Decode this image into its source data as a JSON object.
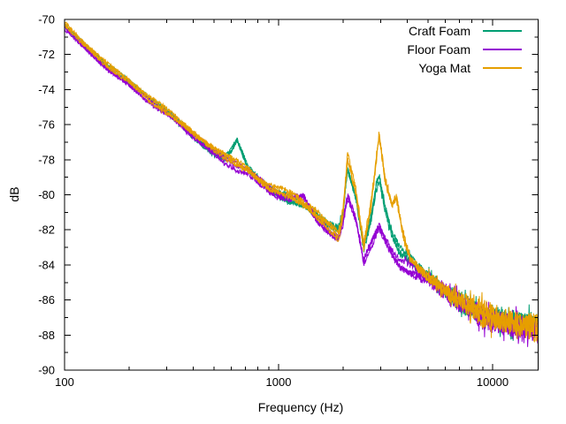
{
  "chart_data": {
    "type": "line",
    "title": "",
    "xlabel": "Frequency (Hz)",
    "ylabel": "dB",
    "x_scale": "log",
    "grid": false,
    "xlim": [
      100,
      16300
    ],
    "ylim": [
      -90,
      -70
    ],
    "x_major_ticks": [
      {
        "value": 100,
        "label": "100"
      },
      {
        "value": 1000,
        "label": "1000"
      },
      {
        "value": 10000,
        "label": "10000"
      }
    ],
    "y_major_ticks": [
      {
        "value": -90,
        "label": "-90"
      },
      {
        "value": -88,
        "label": "-88"
      },
      {
        "value": -86,
        "label": "-86"
      },
      {
        "value": -84,
        "label": "-84"
      },
      {
        "value": -82,
        "label": "-82"
      },
      {
        "value": -80,
        "label": "-80"
      },
      {
        "value": -78,
        "label": "-78"
      },
      {
        "value": -76,
        "label": "-76"
      },
      {
        "value": -74,
        "label": "-74"
      },
      {
        "value": -72,
        "label": "-72"
      },
      {
        "value": -70,
        "label": "-70"
      }
    ],
    "frame_color": "#000000",
    "text_color": "#000000",
    "legend": {
      "position": "top-right"
    },
    "traces_per_series": 3,
    "noise_band_db": {
      "low_freq": 0.15,
      "high_freq": 1.0
    },
    "series": [
      {
        "name": "Craft Foam",
        "color": "#009e73",
        "points": [
          [
            100,
            -70.35
          ],
          [
            126,
            -71.6
          ],
          [
            158,
            -72.7
          ],
          [
            200,
            -73.6
          ],
          [
            251,
            -74.6
          ],
          [
            316,
            -75.5
          ],
          [
            360,
            -76.1
          ],
          [
            400,
            -76.6
          ],
          [
            450,
            -77.1
          ],
          [
            500,
            -77.5
          ],
          [
            560,
            -77.9
          ],
          [
            600,
            -77.4
          ],
          [
            640,
            -76.8
          ],
          [
            680,
            -77.6
          ],
          [
            720,
            -78.4
          ],
          [
            800,
            -79.0
          ],
          [
            900,
            -79.6
          ],
          [
            1000,
            -79.9
          ],
          [
            1150,
            -80.3
          ],
          [
            1300,
            -80.6
          ],
          [
            1500,
            -81.2
          ],
          [
            1700,
            -81.8
          ],
          [
            1900,
            -82.1
          ],
          [
            2000,
            -81.2
          ],
          [
            2100,
            -78.7
          ],
          [
            2300,
            -80.3
          ],
          [
            2500,
            -83.1
          ],
          [
            2700,
            -81.4
          ],
          [
            2850,
            -79.6
          ],
          [
            2950,
            -79.0
          ],
          [
            3150,
            -80.8
          ],
          [
            3400,
            -82.3
          ],
          [
            3700,
            -83.2
          ],
          [
            4100,
            -83.6
          ],
          [
            4500,
            -84.1
          ],
          [
            5000,
            -84.6
          ],
          [
            5600,
            -85.1
          ],
          [
            6300,
            -85.6
          ],
          [
            7100,
            -86.0
          ],
          [
            8000,
            -86.4
          ],
          [
            9000,
            -86.8
          ],
          [
            10000,
            -87.0
          ],
          [
            11500,
            -87.2
          ],
          [
            13000,
            -87.4
          ],
          [
            15000,
            -87.5
          ],
          [
            16300,
            -87.6
          ]
        ]
      },
      {
        "name": "Floor Foam",
        "color": "#9400d3",
        "points": [
          [
            100,
            -70.45
          ],
          [
            126,
            -71.7
          ],
          [
            158,
            -72.8
          ],
          [
            200,
            -73.7
          ],
          [
            251,
            -74.7
          ],
          [
            316,
            -75.6
          ],
          [
            360,
            -76.2
          ],
          [
            400,
            -76.7
          ],
          [
            450,
            -77.2
          ],
          [
            500,
            -77.6
          ],
          [
            560,
            -78.0
          ],
          [
            640,
            -78.4
          ],
          [
            720,
            -78.7
          ],
          [
            800,
            -79.2
          ],
          [
            900,
            -79.7
          ],
          [
            1000,
            -80.0
          ],
          [
            1150,
            -80.2
          ],
          [
            1300,
            -80.0
          ],
          [
            1500,
            -81.3
          ],
          [
            1700,
            -82.0
          ],
          [
            1900,
            -82.5
          ],
          [
            2000,
            -81.6
          ],
          [
            2100,
            -80.1
          ],
          [
            2300,
            -81.4
          ],
          [
            2500,
            -83.8
          ],
          [
            2700,
            -82.9
          ],
          [
            2850,
            -82.2
          ],
          [
            2950,
            -81.9
          ],
          [
            3150,
            -82.6
          ],
          [
            3400,
            -83.4
          ],
          [
            3700,
            -84.0
          ],
          [
            4100,
            -84.3
          ],
          [
            4500,
            -84.6
          ],
          [
            5000,
            -84.9
          ],
          [
            5600,
            -85.3
          ],
          [
            6300,
            -85.8
          ],
          [
            7100,
            -86.2
          ],
          [
            8000,
            -86.6
          ],
          [
            9000,
            -86.9
          ],
          [
            10000,
            -87.1
          ],
          [
            11500,
            -87.3
          ],
          [
            13000,
            -87.5
          ],
          [
            15000,
            -87.6
          ],
          [
            16300,
            -87.7
          ]
        ]
      },
      {
        "name": "Yoga Mat",
        "color": "#e69f00",
        "points": [
          [
            100,
            -70.25
          ],
          [
            126,
            -71.5
          ],
          [
            158,
            -72.6
          ],
          [
            200,
            -73.5
          ],
          [
            251,
            -74.5
          ],
          [
            316,
            -75.4
          ],
          [
            360,
            -76.0
          ],
          [
            400,
            -76.5
          ],
          [
            450,
            -77.0
          ],
          [
            500,
            -77.4
          ],
          [
            560,
            -77.8
          ],
          [
            640,
            -78.2
          ],
          [
            720,
            -78.6
          ],
          [
            800,
            -79.1
          ],
          [
            900,
            -79.6
          ],
          [
            1000,
            -79.8
          ],
          [
            1150,
            -80.1
          ],
          [
            1300,
            -80.5
          ],
          [
            1500,
            -81.1
          ],
          [
            1700,
            -81.7
          ],
          [
            1900,
            -82.3
          ],
          [
            2000,
            -81.0
          ],
          [
            2100,
            -77.8
          ],
          [
            2300,
            -79.8
          ],
          [
            2500,
            -82.9
          ],
          [
            2700,
            -80.6
          ],
          [
            2850,
            -78.2
          ],
          [
            2950,
            -76.6
          ],
          [
            3150,
            -79.2
          ],
          [
            3400,
            -80.6
          ],
          [
            3550,
            -80.1
          ],
          [
            3800,
            -82.2
          ],
          [
            4100,
            -83.6
          ],
          [
            4500,
            -84.2
          ],
          [
            5000,
            -84.7
          ],
          [
            5600,
            -85.2
          ],
          [
            6300,
            -85.7
          ],
          [
            7100,
            -86.1
          ],
          [
            8000,
            -86.5
          ],
          [
            9000,
            -86.8
          ],
          [
            10000,
            -87.0
          ],
          [
            11500,
            -87.2
          ],
          [
            13000,
            -87.3
          ],
          [
            15000,
            -87.4
          ],
          [
            16300,
            -87.5
          ]
        ]
      }
    ]
  }
}
